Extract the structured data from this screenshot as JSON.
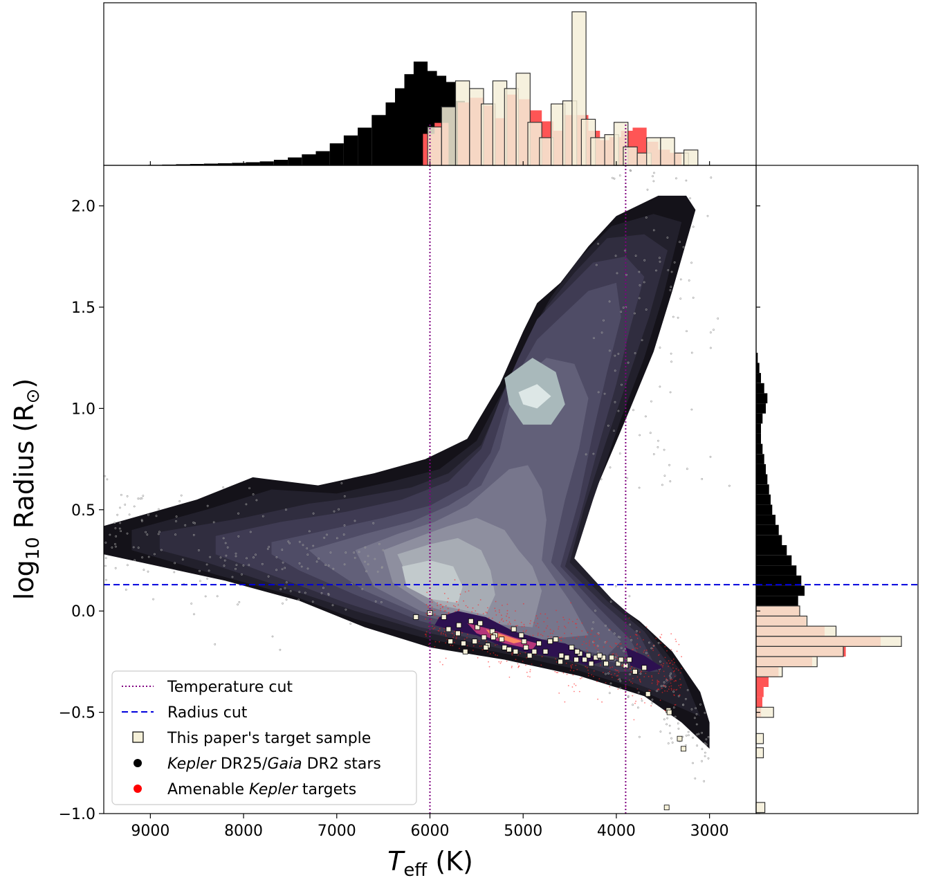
{
  "chart_data": {
    "type": "scatter",
    "xlabel": {
      "main": "T",
      "sub": "eff",
      "unit": " (K)"
    },
    "ylabel": {
      "main": "log",
      "sub": "10",
      "rest": " Radius (R",
      "sub2": "⊙",
      "end": ")"
    },
    "xlim": [
      9500,
      2500
    ],
    "ylim": [
      -1.0,
      2.2
    ],
    "x_ticks": [
      9000,
      8000,
      7000,
      6000,
      5000,
      4000,
      3000
    ],
    "x_tick_labels": [
      "9000",
      "8000",
      "7000",
      "6000",
      "5000",
      "4000",
      "3000"
    ],
    "y_ticks": [
      -1.0,
      -0.5,
      0.0,
      0.5,
      1.0,
      1.5,
      2.0
    ],
    "y_tick_labels": [
      "−1.0",
      "−0.5",
      "0.0",
      "0.5",
      "1.0",
      "1.5",
      "2.0"
    ],
    "cuts": {
      "temperature": [
        6000,
        3900
      ],
      "radius": 0.13
    },
    "legend": {
      "placement": "lower-left",
      "entries": [
        {
          "marker": "dotted-line",
          "color": "#800080",
          "parts": [
            {
              "t": "Temperature cut",
              "i": false
            }
          ]
        },
        {
          "marker": "dashed-line",
          "color": "#0000dd",
          "parts": [
            {
              "t": "Radius cut",
              "i": false
            }
          ]
        },
        {
          "marker": "square",
          "color": "#f5f0d8",
          "parts": [
            {
              "t": "This paper's target sample",
              "i": false
            }
          ]
        },
        {
          "marker": "dot",
          "color": "#000000",
          "parts": [
            {
              "t": "Kepler",
              "i": true
            },
            {
              "t": " DR25/",
              "i": false
            },
            {
              "t": "Gaia",
              "i": true
            },
            {
              "t": " DR2 stars",
              "i": false
            }
          ]
        },
        {
          "marker": "dot",
          "color": "#ff0000",
          "parts": [
            {
              "t": "Amenable ",
              "i": false
            },
            {
              "t": "Kepler",
              "i": true
            },
            {
              "t": " targets",
              "i": false
            }
          ]
        }
      ]
    },
    "density_contours": [
      [
        [
          9500,
          0.42
        ],
        [
          8500,
          0.55
        ],
        [
          7900,
          0.66
        ],
        [
          7200,
          0.62
        ],
        [
          6600,
          0.68
        ],
        [
          6050,
          0.75
        ],
        [
          5600,
          0.85
        ],
        [
          5250,
          1.12
        ],
        [
          5000,
          1.38
        ],
        [
          4850,
          1.52
        ],
        [
          4600,
          1.62
        ],
        [
          4300,
          1.8
        ],
        [
          4000,
          1.95
        ],
        [
          3550,
          2.05
        ],
        [
          3250,
          2.05
        ],
        [
          3150,
          1.98
        ],
        [
          3400,
          1.58
        ],
        [
          3600,
          1.28
        ],
        [
          3850,
          1.0
        ],
        [
          4200,
          0.62
        ],
        [
          4500,
          0.28
        ],
        [
          4150,
          0.08
        ],
        [
          3750,
          -0.05
        ],
        [
          3400,
          -0.2
        ],
        [
          3100,
          -0.4
        ],
        [
          3000,
          -0.55
        ],
        [
          3000,
          -0.68
        ],
        [
          3300,
          -0.55
        ],
        [
          3700,
          -0.42
        ],
        [
          4400,
          -0.32
        ],
        [
          5200,
          -0.24
        ],
        [
          6000,
          -0.18
        ],
        [
          6700,
          -0.08
        ],
        [
          7400,
          0.05
        ],
        [
          8200,
          0.15
        ],
        [
          9500,
          0.28
        ]
      ],
      [
        [
          9200,
          0.4
        ],
        [
          8400,
          0.5
        ],
        [
          7700,
          0.6
        ],
        [
          7000,
          0.58
        ],
        [
          6400,
          0.64
        ],
        [
          5900,
          0.7
        ],
        [
          5500,
          0.84
        ],
        [
          5200,
          1.1
        ],
        [
          4950,
          1.35
        ],
        [
          4700,
          1.55
        ],
        [
          4400,
          1.74
        ],
        [
          4050,
          1.9
        ],
        [
          3600,
          1.96
        ],
        [
          3300,
          1.92
        ],
        [
          3500,
          1.55
        ],
        [
          3700,
          1.25
        ],
        [
          3950,
          0.95
        ],
        [
          4250,
          0.55
        ],
        [
          4450,
          0.26
        ],
        [
          4050,
          0.06
        ],
        [
          3650,
          -0.1
        ],
        [
          3300,
          -0.3
        ],
        [
          3100,
          -0.52
        ],
        [
          3450,
          -0.45
        ],
        [
          3800,
          -0.38
        ],
        [
          4500,
          -0.28
        ],
        [
          5200,
          -0.21
        ],
        [
          6000,
          -0.14
        ],
        [
          6800,
          -0.04
        ],
        [
          7500,
          0.08
        ],
        [
          8300,
          0.18
        ],
        [
          9200,
          0.3
        ]
      ],
      [
        [
          8900,
          0.39
        ],
        [
          8000,
          0.46
        ],
        [
          7300,
          0.53
        ],
        [
          6800,
          0.56
        ],
        [
          6200,
          0.61
        ],
        [
          5800,
          0.68
        ],
        [
          5450,
          0.82
        ],
        [
          5200,
          1.08
        ],
        [
          4950,
          1.3
        ],
        [
          4750,
          1.5
        ],
        [
          4450,
          1.67
        ],
        [
          4100,
          1.84
        ],
        [
          3700,
          1.86
        ],
        [
          3450,
          1.78
        ],
        [
          3650,
          1.45
        ],
        [
          3850,
          1.18
        ],
        [
          4100,
          0.85
        ],
        [
          4350,
          0.5
        ],
        [
          4500,
          0.24
        ],
        [
          4100,
          0.05
        ],
        [
          3700,
          -0.1
        ],
        [
          3350,
          -0.32
        ],
        [
          3550,
          -0.4
        ],
        [
          3900,
          -0.34
        ],
        [
          4500,
          -0.25
        ],
        [
          5200,
          -0.19
        ],
        [
          6000,
          -0.11
        ],
        [
          6800,
          0.0
        ],
        [
          7600,
          0.12
        ],
        [
          8400,
          0.24
        ],
        [
          8900,
          0.3
        ]
      ],
      [
        [
          8300,
          0.37
        ],
        [
          7600,
          0.44
        ],
        [
          6900,
          0.49
        ],
        [
          6300,
          0.55
        ],
        [
          5800,
          0.64
        ],
        [
          5450,
          0.8
        ],
        [
          5250,
          1.04
        ],
        [
          5050,
          1.25
        ],
        [
          4850,
          1.44
        ],
        [
          4550,
          1.58
        ],
        [
          4250,
          1.72
        ],
        [
          3900,
          1.75
        ],
        [
          3700,
          1.65
        ],
        [
          3850,
          1.4
        ],
        [
          4000,
          1.12
        ],
        [
          4200,
          0.8
        ],
        [
          4400,
          0.45
        ],
        [
          4550,
          0.22
        ],
        [
          4150,
          0.04
        ],
        [
          3750,
          -0.12
        ],
        [
          3550,
          -0.3
        ],
        [
          4000,
          -0.3
        ],
        [
          4600,
          -0.22
        ],
        [
          5300,
          -0.16
        ],
        [
          6100,
          -0.08
        ],
        [
          6900,
          0.04
        ],
        [
          7600,
          0.16
        ],
        [
          8300,
          0.28
        ]
      ],
      [
        [
          7700,
          0.34
        ],
        [
          7100,
          0.4
        ],
        [
          6500,
          0.46
        ],
        [
          6000,
          0.52
        ],
        [
          5600,
          0.62
        ],
        [
          5350,
          0.78
        ],
        [
          5200,
          1.0
        ],
        [
          5050,
          1.18
        ],
        [
          4850,
          1.34
        ],
        [
          4600,
          1.45
        ],
        [
          4300,
          1.58
        ],
        [
          4000,
          1.62
        ],
        [
          3950,
          1.45
        ],
        [
          4100,
          1.18
        ],
        [
          4250,
          0.88
        ],
        [
          4400,
          0.55
        ],
        [
          4600,
          0.22
        ],
        [
          4200,
          0.02
        ],
        [
          3850,
          -0.14
        ],
        [
          3700,
          -0.27
        ],
        [
          4100,
          -0.25
        ],
        [
          4700,
          -0.19
        ],
        [
          5400,
          -0.13
        ],
        [
          6100,
          -0.05
        ],
        [
          6800,
          0.08
        ],
        [
          7400,
          0.2
        ],
        [
          7700,
          0.28
        ]
      ],
      [
        [
          7300,
          0.3
        ],
        [
          6700,
          0.38
        ],
        [
          6200,
          0.44
        ],
        [
          5800,
          0.52
        ],
        [
          5450,
          0.62
        ],
        [
          5250,
          0.8
        ],
        [
          5150,
          1.0
        ],
        [
          5000,
          1.15
        ],
        [
          4750,
          1.25
        ],
        [
          4450,
          1.22
        ],
        [
          4300,
          1.05
        ],
        [
          4400,
          0.8
        ],
        [
          4550,
          0.55
        ],
        [
          4700,
          0.24
        ],
        [
          4300,
          0.02
        ],
        [
          3950,
          -0.15
        ],
        [
          4100,
          -0.22
        ],
        [
          4700,
          -0.16
        ],
        [
          5400,
          -0.1
        ],
        [
          6100,
          -0.02
        ],
        [
          6700,
          0.1
        ],
        [
          7100,
          0.22
        ]
      ],
      [
        [
          6800,
          0.3
        ],
        [
          6350,
          0.38
        ],
        [
          5950,
          0.44
        ],
        [
          5600,
          0.52
        ],
        [
          5350,
          0.62
        ],
        [
          5150,
          0.7
        ],
        [
          4950,
          0.72
        ],
        [
          4800,
          0.6
        ],
        [
          4750,
          0.45
        ],
        [
          4800,
          0.25
        ],
        [
          4500,
          0.05
        ],
        [
          4300,
          -0.12
        ],
        [
          4800,
          -0.14
        ],
        [
          5400,
          -0.08
        ],
        [
          6100,
          0.0
        ],
        [
          6600,
          0.12
        ]
      ],
      [
        [
          6500,
          0.3
        ],
        [
          6100,
          0.37
        ],
        [
          5800,
          0.42
        ],
        [
          5500,
          0.46
        ],
        [
          5200,
          0.4
        ],
        [
          5050,
          0.3
        ],
        [
          4900,
          0.22
        ],
        [
          4800,
          0.1
        ],
        [
          4900,
          -0.08
        ],
        [
          5400,
          -0.06
        ],
        [
          6000,
          0.02
        ],
        [
          6400,
          0.14
        ]
      ],
      [
        [
          6350,
          0.28
        ],
        [
          6000,
          0.33
        ],
        [
          5700,
          0.36
        ],
        [
          5450,
          0.3
        ],
        [
          5350,
          0.2
        ],
        [
          5300,
          0.08
        ],
        [
          5400,
          -0.02
        ],
        [
          5900,
          0.03
        ],
        [
          6200,
          0.13
        ]
      ],
      [
        [
          6300,
          0.22
        ],
        [
          6000,
          0.25
        ],
        [
          5750,
          0.22
        ],
        [
          5650,
          0.12
        ],
        [
          5700,
          0.04
        ],
        [
          6000,
          0.06
        ],
        [
          6250,
          0.12
        ]
      ],
      [
        [
          5200,
          1.15
        ],
        [
          4900,
          1.25
        ],
        [
          4650,
          1.18
        ],
        [
          4550,
          1.02
        ],
        [
          4700,
          0.92
        ],
        [
          5000,
          0.92
        ],
        [
          5150,
          1.02
        ]
      ],
      [
        [
          5050,
          1.08
        ],
        [
          4850,
          1.12
        ],
        [
          4700,
          1.06
        ],
        [
          4850,
          1.0
        ],
        [
          5000,
          1.02
        ]
      ]
    ],
    "targets_x": [
      6150,
      6000,
      5850,
      5780,
      5640,
      5520,
      5490,
      5460,
      5420,
      5380,
      5330,
      5300,
      5230,
      5200,
      5150,
      5080,
      5020,
      4970,
      4930,
      4880,
      4830,
      4760,
      4650,
      4590,
      4530,
      4480,
      4430,
      4390,
      4300,
      4220,
      4140,
      4110,
      4050,
      3980,
      3950,
      3900,
      3860,
      3800,
      3700,
      3660,
      3440,
      3430,
      3320,
      3280,
      3460,
      5690,
      5560,
      5100,
      4990,
      5320,
      5700,
      5800,
      5620,
      5400,
      4710,
      4600,
      4420,
      4340,
      4270,
      4180
    ],
    "targets_y": [
      -0.03,
      -0.01,
      -0.03,
      -0.15,
      -0.16,
      -0.15,
      -0.08,
      -0.06,
      -0.13,
      -0.17,
      -0.1,
      -0.12,
      -0.14,
      -0.18,
      -0.19,
      -0.2,
      -0.12,
      -0.18,
      -0.22,
      -0.2,
      -0.16,
      -0.2,
      -0.14,
      -0.22,
      -0.23,
      -0.18,
      -0.24,
      -0.21,
      -0.22,
      -0.23,
      -0.23,
      -0.26,
      -0.23,
      -0.26,
      -0.24,
      -0.27,
      -0.24,
      -0.3,
      -0.28,
      -0.41,
      -0.49,
      -0.5,
      -0.63,
      -0.68,
      -0.97,
      -0.07,
      -0.05,
      -0.09,
      -0.15,
      -0.13,
      -0.11,
      -0.09,
      -0.2,
      -0.18,
      -0.15,
      -0.25,
      -0.2,
      -0.24,
      -0.26,
      -0.22
    ],
    "top_histograms": [
      {
        "name": "black",
        "color": "#000000",
        "bins_x": [
          9100,
          8950,
          8800,
          8650,
          8500,
          8350,
          8200,
          8050,
          7900,
          7750,
          7600,
          7450,
          7300,
          7150,
          7000,
          6850,
          6700,
          6550,
          6400,
          6300,
          6200,
          6100,
          6000,
          5900,
          5800,
          5700
        ],
        "counts": [
          0.002,
          0.003,
          0.005,
          0.007,
          0.009,
          0.011,
          0.013,
          0.016,
          0.02,
          0.025,
          0.035,
          0.05,
          0.07,
          0.09,
          0.14,
          0.19,
          0.24,
          0.32,
          0.4,
          0.49,
          0.58,
          0.66,
          0.6,
          0.57,
          0.53,
          0.41
        ]
      },
      {
        "name": "red",
        "color": "#ff5555",
        "bins_x": [
          6000,
          5875,
          5750,
          5625,
          5500,
          5375,
          5250,
          5125,
          5000,
          4875,
          4750,
          4625,
          4500,
          4375,
          4250,
          4125,
          4000,
          3875,
          3750,
          3625,
          3500,
          3375
        ],
        "counts": [
          0.2,
          0.27,
          0.0,
          0.4,
          0.43,
          0.38,
          0.3,
          0.45,
          0.42,
          0.35,
          0.28,
          0.22,
          0.32,
          0.32,
          0.22,
          0.16,
          0.18,
          0.22,
          0.24,
          0.15,
          0.1,
          0.08
        ]
      }
    ],
    "right_histogram": {
      "color": "#000000",
      "bins_y": [
        1.25,
        1.2,
        1.15,
        1.1,
        1.05,
        1.0,
        0.95,
        0.9,
        0.85,
        0.8,
        0.75,
        0.7,
        0.65,
        0.6,
        0.55,
        0.5,
        0.45,
        0.4,
        0.35,
        0.3,
        0.25,
        0.2,
        0.15,
        0.1,
        0.05,
        0.0
      ],
      "counts": [
        0.01,
        0.02,
        0.03,
        0.05,
        0.07,
        0.06,
        0.04,
        0.03,
        0.03,
        0.04,
        0.05,
        0.06,
        0.07,
        0.08,
        0.09,
        0.1,
        0.12,
        0.14,
        0.16,
        0.19,
        0.22,
        0.25,
        0.28,
        0.3,
        0.26,
        0.2
      ]
    }
  }
}
